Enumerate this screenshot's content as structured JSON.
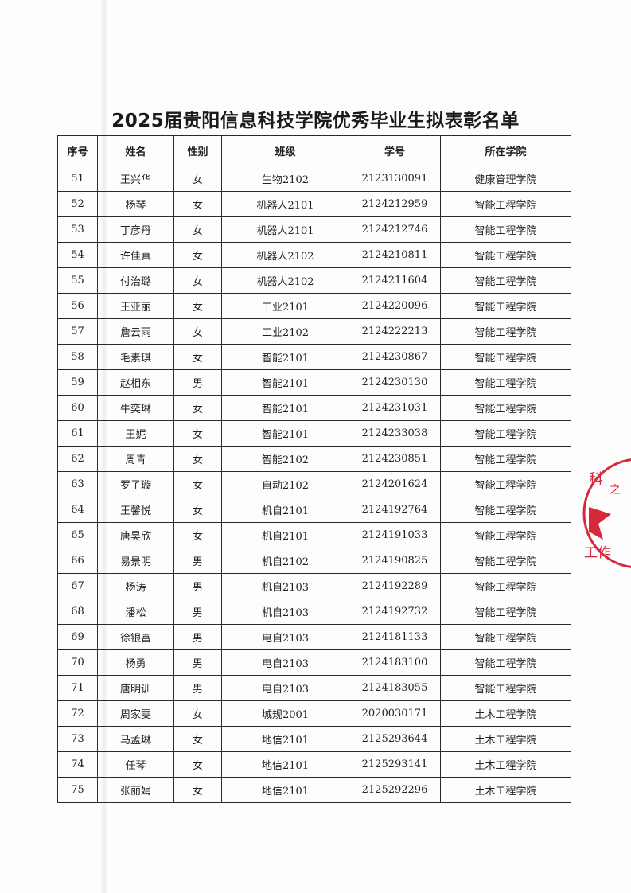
{
  "title": "2025届贵阳信息科技学院优秀毕业生拟表彰名单",
  "columns": [
    "序号",
    "姓名",
    "性别",
    "班级",
    "学号",
    "所在学院"
  ],
  "rows": [
    [
      "51",
      "王兴华",
      "女",
      "生物2102",
      "2123130091",
      "健康管理学院"
    ],
    [
      "52",
      "杨琴",
      "女",
      "机器人2101",
      "2124212959",
      "智能工程学院"
    ],
    [
      "53",
      "丁彦丹",
      "女",
      "机器人2101",
      "2124212746",
      "智能工程学院"
    ],
    [
      "54",
      "许佳真",
      "女",
      "机器人2102",
      "2124210811",
      "智能工程学院"
    ],
    [
      "55",
      "付治璐",
      "女",
      "机器人2102",
      "2124211604",
      "智能工程学院"
    ],
    [
      "56",
      "王亚丽",
      "女",
      "工业2101",
      "2124220096",
      "智能工程学院"
    ],
    [
      "57",
      "詹云雨",
      "女",
      "工业2102",
      "2124222213",
      "智能工程学院"
    ],
    [
      "58",
      "毛素琪",
      "女",
      "智能2101",
      "2124230867",
      "智能工程学院"
    ],
    [
      "59",
      "赵相东",
      "男",
      "智能2101",
      "2124230130",
      "智能工程学院"
    ],
    [
      "60",
      "牛奕琳",
      "女",
      "智能2101",
      "2124231031",
      "智能工程学院"
    ],
    [
      "61",
      "王妮",
      "女",
      "智能2101",
      "2124233038",
      "智能工程学院"
    ],
    [
      "62",
      "周青",
      "女",
      "智能2102",
      "2124230851",
      "智能工程学院"
    ],
    [
      "63",
      "罗子璇",
      "女",
      "自动2102",
      "2124201624",
      "智能工程学院"
    ],
    [
      "64",
      "王馨悦",
      "女",
      "机自2101",
      "2124192764",
      "智能工程学院"
    ],
    [
      "65",
      "唐昊欣",
      "女",
      "机自2101",
      "2124191033",
      "智能工程学院"
    ],
    [
      "66",
      "易景明",
      "男",
      "机自2102",
      "2124190825",
      "智能工程学院"
    ],
    [
      "67",
      "杨涛",
      "男",
      "机自2103",
      "2124192289",
      "智能工程学院"
    ],
    [
      "68",
      "潘松",
      "男",
      "机自2103",
      "2124192732",
      "智能工程学院"
    ],
    [
      "69",
      "徐银富",
      "男",
      "电自2103",
      "2124181133",
      "智能工程学院"
    ],
    [
      "70",
      "杨勇",
      "男",
      "电自2103",
      "2124183100",
      "智能工程学院"
    ],
    [
      "71",
      "唐明训",
      "男",
      "电自2103",
      "2124183055",
      "智能工程学院"
    ],
    [
      "72",
      "周家雯",
      "女",
      "城规2001",
      "2020030171",
      "土木工程学院"
    ],
    [
      "73",
      "马孟琳",
      "女",
      "地信2101",
      "2125293644",
      "土木工程学院"
    ],
    [
      "74",
      "任琴",
      "女",
      "地信2101",
      "2125293141",
      "土木工程学院"
    ],
    [
      "75",
      "张丽娟",
      "女",
      "地信2101",
      "2125292296",
      "土木工程学院"
    ]
  ],
  "stamp": {
    "color": "#d8283c",
    "visible_text": [
      "科",
      "之",
      "工作"
    ]
  }
}
